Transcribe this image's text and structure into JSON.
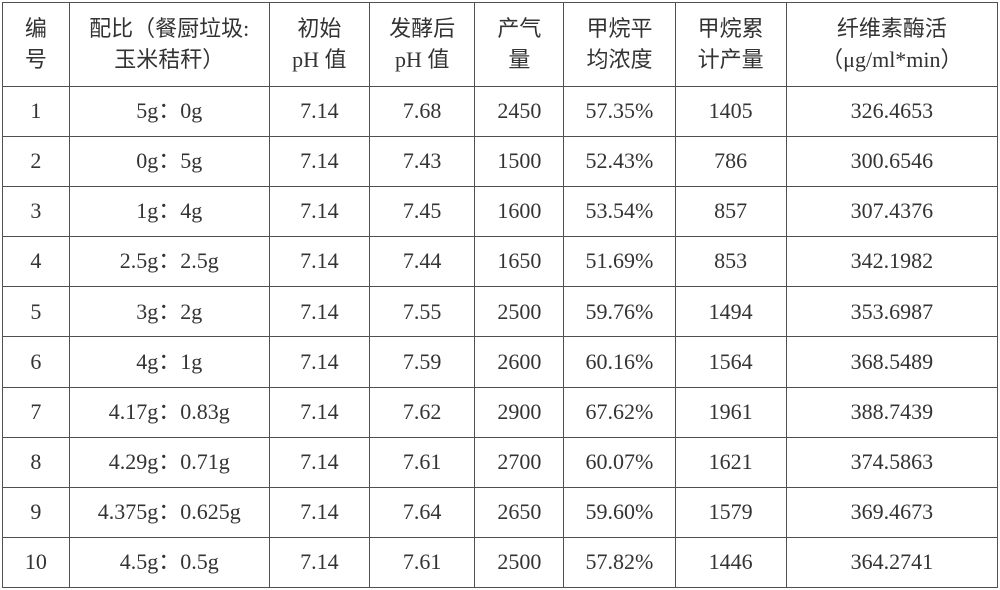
{
  "table": {
    "type": "table",
    "background_color": "#ffffff",
    "border_color": "#505050",
    "text_color": "#333333",
    "font_size_pt": 16,
    "font_family": "SimSun",
    "column_widths_pct": [
      6,
      18,
      9,
      9.5,
      8,
      10,
      10,
      19
    ],
    "columns": [
      {
        "line1": "编",
        "line2": "号"
      },
      {
        "line1": "配比（餐厨垃圾:",
        "line2": "玉米秸秆）"
      },
      {
        "line1": "初始",
        "line2": "pH 值"
      },
      {
        "line1": "发酵后",
        "line2": "pH 值"
      },
      {
        "line1": "产气",
        "line2": "量"
      },
      {
        "line1": "甲烷平",
        "line2": "均浓度"
      },
      {
        "line1": "甲烷累",
        "line2": "计产量"
      },
      {
        "line1": "纤维素酶活",
        "line2": "（μg/ml*min）"
      }
    ],
    "rows": [
      {
        "id": "1",
        "ratio": "5g：0g",
        "initial_ph": "7.14",
        "final_ph": "7.68",
        "gas": "2450",
        "methane_pct": "57.35%",
        "methane_cum": "1405",
        "enzyme": "326.4653"
      },
      {
        "id": "2",
        "ratio": "0g：5g",
        "initial_ph": "7.14",
        "final_ph": "7.43",
        "gas": "1500",
        "methane_pct": "52.43%",
        "methane_cum": "786",
        "enzyme": "300.6546"
      },
      {
        "id": "3",
        "ratio": "1g：4g",
        "initial_ph": "7.14",
        "final_ph": "7.45",
        "gas": "1600",
        "methane_pct": "53.54%",
        "methane_cum": "857",
        "enzyme": "307.4376"
      },
      {
        "id": "4",
        "ratio": "2.5g：2.5g",
        "initial_ph": "7.14",
        "final_ph": "7.44",
        "gas": "1650",
        "methane_pct": "51.69%",
        "methane_cum": "853",
        "enzyme": "342.1982"
      },
      {
        "id": "5",
        "ratio": "3g：2g",
        "initial_ph": "7.14",
        "final_ph": "7.55",
        "gas": "2500",
        "methane_pct": "59.76%",
        "methane_cum": "1494",
        "enzyme": "353.6987"
      },
      {
        "id": "6",
        "ratio": "4g：1g",
        "initial_ph": "7.14",
        "final_ph": "7.59",
        "gas": "2600",
        "methane_pct": "60.16%",
        "methane_cum": "1564",
        "enzyme": "368.5489"
      },
      {
        "id": "7",
        "ratio": "4.17g：0.83g",
        "initial_ph": "7.14",
        "final_ph": "7.62",
        "gas": "2900",
        "methane_pct": "67.62%",
        "methane_cum": "1961",
        "enzyme": "388.7439"
      },
      {
        "id": "8",
        "ratio": "4.29g：0.71g",
        "initial_ph": "7.14",
        "final_ph": "7.61",
        "gas": "2700",
        "methane_pct": "60.07%",
        "methane_cum": "1621",
        "enzyme": "374.5863"
      },
      {
        "id": "9",
        "ratio": "4.375g：0.625g",
        "initial_ph": "7.14",
        "final_ph": "7.64",
        "gas": "2650",
        "methane_pct": "59.60%",
        "methane_cum": "1579",
        "enzyme": "369.4673"
      },
      {
        "id": "10",
        "ratio": "4.5g：0.5g",
        "initial_ph": "7.14",
        "final_ph": "7.61",
        "gas": "2500",
        "methane_pct": "57.82%",
        "methane_cum": "1446",
        "enzyme": "364.2741"
      }
    ]
  }
}
